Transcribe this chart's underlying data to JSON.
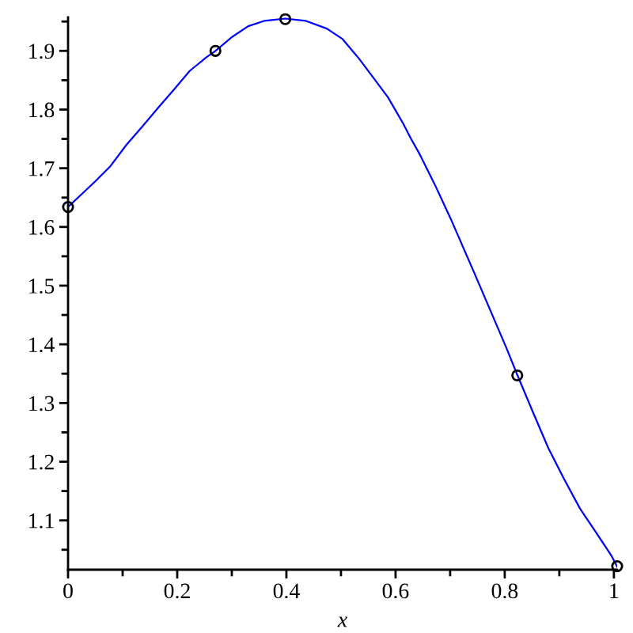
{
  "chart_data": {
    "type": "line",
    "xlabel": "x",
    "xlim": [
      0,
      1.006
    ],
    "ylim": [
      1.016,
      1.957
    ],
    "xticks": [
      0,
      {
        "value": 0.1,
        "label": null
      },
      0.2,
      {
        "value": 0.3,
        "label": null
      },
      0.4,
      {
        "value": 0.5,
        "label": null
      },
      0.6,
      {
        "value": 0.7,
        "label": null
      },
      0.8,
      {
        "value": 0.9,
        "label": null
      },
      1
    ],
    "yticks": [
      {
        "value": 1.05,
        "label": null
      },
      1.1,
      {
        "value": 1.15,
        "label": null
      },
      1.2,
      {
        "value": 1.25,
        "label": null
      },
      1.3,
      {
        "value": 1.35,
        "label": null
      },
      1.4,
      {
        "value": 1.45,
        "label": null
      },
      1.5,
      {
        "value": 1.55,
        "label": null
      },
      1.6,
      {
        "value": 1.65,
        "label": null
      },
      1.7,
      {
        "value": 1.75,
        "label": null
      },
      1.8,
      {
        "value": 1.85,
        "label": null
      },
      1.9,
      {
        "value": 1.95,
        "label": null
      }
    ],
    "series": [
      {
        "color": "#0000ff",
        "marker": "none",
        "line_style": "solid",
        "x": [
          0,
          0.049,
          0.078,
          0.107,
          0.136,
          0.165,
          0.194,
          0.223,
          0.252,
          0.27,
          0.301,
          0.33,
          0.359,
          0.398,
          0.436,
          0.474,
          0.503,
          0.532,
          0.557,
          0.586,
          0.614,
          0.629,
          0.643,
          0.672,
          0.701,
          0.745,
          0.774,
          0.803,
          0.823,
          0.851,
          0.88,
          0.909,
          0.938,
          0.967,
          0.996,
          1.006
        ],
        "values": [
          1.634,
          1.677,
          1.704,
          1.74,
          1.771,
          1.803,
          1.834,
          1.866,
          1.888,
          1.9,
          1.924,
          1.942,
          1.951,
          1.955,
          1.951,
          1.938,
          1.92,
          1.888,
          1.857,
          1.821,
          1.776,
          1.749,
          1.726,
          1.672,
          1.614,
          1.52,
          1.457,
          1.394,
          1.348,
          1.286,
          1.223,
          1.17,
          1.12,
          1.08,
          1.039,
          1.021
        ]
      },
      {
        "type": "scatter",
        "color": "#000000",
        "marker": "circle",
        "x": [
          0,
          0.27,
          0.398,
          0.823,
          1.006
        ],
        "values": [
          1.634,
          1.9,
          1.954,
          1.347,
          1.022
        ]
      }
    ]
  }
}
